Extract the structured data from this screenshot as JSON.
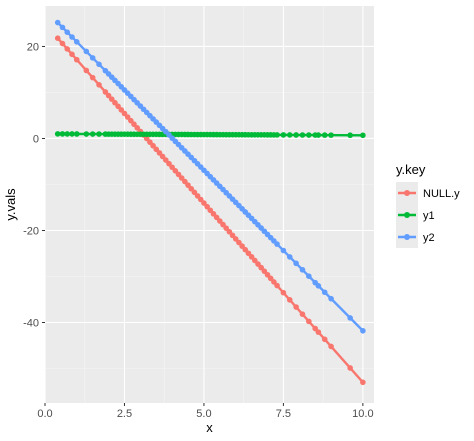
{
  "chart_data": {
    "type": "line",
    "xlabel": "x",
    "ylabel": "y.vals",
    "xlim": [
      0,
      10.35
    ],
    "ylim": [
      -57.5,
      28.8
    ],
    "x_ticks": [
      0,
      2.5,
      5,
      7.5,
      10
    ],
    "x_tick_labels": [
      "0.0",
      "2.5",
      "5.0",
      "7.5",
      "10.0"
    ],
    "y_ticks": [
      -40,
      -20,
      0,
      20
    ],
    "y_tick_labels": [
      "-40",
      "-20",
      "0",
      "20"
    ],
    "grid": true,
    "legend_position": "right",
    "legend_title": "y.key",
    "markers": true,
    "series": [
      {
        "name": "NULL.y",
        "color": "#F8766D",
        "start": [
          0.4,
          21.8
        ],
        "end": [
          10.0,
          -53.0
        ]
      },
      {
        "name": "y1",
        "color": "#00BA38",
        "start": [
          0.4,
          1.0
        ],
        "end": [
          10.0,
          0.7
        ]
      },
      {
        "name": "y2",
        "color": "#619CFF",
        "start": [
          0.4,
          25.2
        ],
        "end": [
          10.0,
          -41.8
        ]
      }
    ],
    "x_points": [
      0.4,
      0.55,
      0.7,
      0.85,
      1.0,
      1.3,
      1.5,
      1.7,
      1.9,
      2.0,
      2.1,
      2.2,
      2.3,
      2.4,
      2.5,
      2.6,
      2.7,
      2.8,
      2.9,
      3.0,
      3.1,
      3.2,
      3.3,
      3.4,
      3.5,
      3.6,
      3.7,
      3.8,
      3.9,
      4.0,
      4.1,
      4.2,
      4.3,
      4.4,
      4.5,
      4.6,
      4.7,
      4.8,
      4.9,
      5.0,
      5.1,
      5.2,
      5.3,
      5.4,
      5.5,
      5.6,
      5.7,
      5.8,
      5.9,
      6.0,
      6.1,
      6.2,
      6.3,
      6.4,
      6.5,
      6.6,
      6.7,
      6.8,
      6.9,
      7.0,
      7.1,
      7.2,
      7.3,
      7.5,
      7.7,
      7.9,
      8.1,
      8.3,
      8.5,
      8.6,
      8.8,
      9.0,
      9.6,
      10.0
    ]
  }
}
